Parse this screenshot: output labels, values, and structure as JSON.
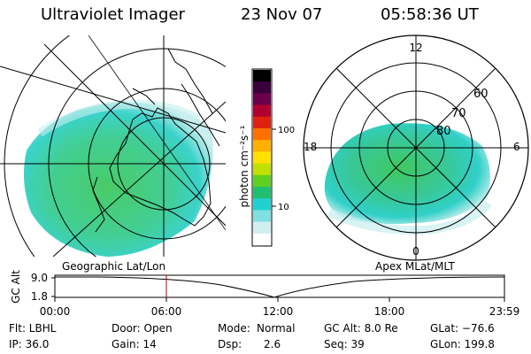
{
  "header": {
    "instrument": "Ultraviolet Imager",
    "date": "23 Nov 07",
    "time": "05:58:36 UT"
  },
  "colorbar": {
    "unit_label": "photon cm⁻²s⁻¹",
    "ticks": [
      "100",
      "10"
    ],
    "colors": [
      "#000000",
      "#3a003a",
      "#6a004a",
      "#b00030",
      "#e02010",
      "#ff7000",
      "#ffb000",
      "#ffe000",
      "#c0e000",
      "#60d020",
      "#20c070",
      "#20d0d0",
      "#80e0e0",
      "#d0f0f0",
      "#ffffff"
    ]
  },
  "polar_plot": {
    "labels": {
      "top": "12",
      "left": "18",
      "right": "6",
      "bottom": "0"
    },
    "rings": [
      "60",
      "70",
      "80"
    ]
  },
  "panel_labels": {
    "geographic": "Geographic Lat/Lon",
    "apex": "Apex MLat/MLT"
  },
  "alt_plot": {
    "axis_label": "GC Alt",
    "y_ticks": [
      "9.0",
      "1.8"
    ],
    "x_ticks": [
      "00:00",
      "06:00",
      "12:00",
      "18:00",
      "23:59"
    ]
  },
  "status": {
    "flt": "Flt: LBHL",
    "ip": "IP: 36.0",
    "door": "Door: Open",
    "gain": "Gain: 14",
    "mode_label": "Mode:",
    "mode_value": "Normal",
    "dsp_label": "Dsp:",
    "dsp_value": "2.6",
    "gc_alt": "GC Alt: 8.0 Re",
    "seq": "Seq: 39",
    "glat": "GLat: −76.6",
    "glon": "GLon: 199.8"
  },
  "colors": {
    "aurora_green": "#40c860",
    "aurora_cyan": "#30d0c8",
    "aurora_pale": "#a0e8e0",
    "marker_red": "#c00000"
  }
}
